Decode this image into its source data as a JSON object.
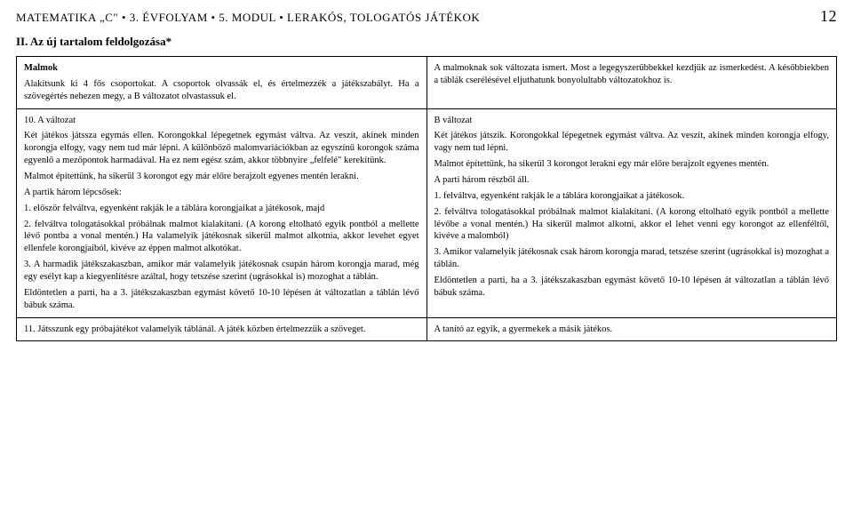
{
  "header": {
    "left": "MATEMATIKA „C\" • 3. ÉVFOLYAM • 5. MODUL • LERAKÓS, TOLOGATÓS JÁTÉKOK",
    "pageNum": "12"
  },
  "sectionTitle": "II. Az új tartalom feldolgozása*",
  "rows": [
    {
      "left": {
        "title": "Malmok",
        "paras": [
          "Alakítsunk ki 4 fős csoportokat. A csoportok olvassák el, és értelmezzék a játékszabályt. Ha a szövegértés nehezen megy, a B változatot olvastassuk el."
        ]
      },
      "right": {
        "paras": [
          "A malmoknak sok változata ismert. Most a legegyszerűbbekkel kezdjük az ismerkedést. A későbbiekben a táblák cserélésével eljuthatunk bonyolultabb változatokhoz is."
        ]
      }
    },
    {
      "left": {
        "title": "10. A változat",
        "paras": [
          "Két játékos játssza egymás ellen. Korongokkal lépegetnek egymást váltva. Az veszít, akinek minden korongja elfogy, vagy nem tud már lépni. A különböző malomvariációkban az egyszínű korongok száma egyenlő a mezőpontok harmadával. Ha ez nem egész szám, akkor többnyire „felfelé\" kerekítünk.",
          "Malmot építettünk, ha sikerül 3 korongot egy már előre berajzolt egyenes mentén lerakni.",
          "A partik három lépcsősek:",
          "1. először felváltva, egyenként rakják le a táblára korongjaikat a játékosok, majd",
          "2. felváltva tologatásokkal próbálnak malmot kialakítani. (A korong eltolható egyik pontból a mellette lévő pontba a vonal mentén.) Ha valamelyik játékosnak sikerül malmot alkotnia, akkor levehet egyet ellenfele korongjaiból, kivéve az éppen malmot alkotókat.",
          "3. A harmadik játékszakaszban, amikor már valamelyik játékosnak csupán három korongja marad, még egy esélyt kap a kiegyenlítésre azáltal, hogy tetszése szerint (ugrásokkal is) mozoghat a táblán.",
          "Eldöntetlen a parti, ha a 3. játékszakaszban egymást követő 10-10 lépésen át változatlan a táblán lévő bábuk száma."
        ]
      },
      "right": {
        "title": "B változat",
        "paras": [
          "Két játékos játszik. Korongokkal lépegetnek egymást váltva. Az veszít, akinek minden korongja elfogy, vagy nem tud lépni.",
          "Malmot építettünk, ha sikerül 3 korongot lerakni egy már előre berajzolt egyenes mentén.",
          "A parti három részből áll.",
          "1. felváltva, egyenként rakják le a táblára korongjaikat a játékosok.",
          "2. felváltva tologatásokkal próbálnak malmot kialakítani. (A korong eltolható egyik pontból a mellette lévőbe a vonal mentén.) Ha sikerül malmot alkotni, akkor el lehet venni egy korongot az ellenféltől, kivéve a malomból)",
          "3. Amikor valamelyik játékosnak csak három korongja marad, tetszése szerint (ugrásokkal is) mozoghat a táblán.",
          "Eldöntetlen a parti, ha a 3. játékszakaszban egymást követő 10-10 lépésen át változatlan a táblán lévő bábuk száma."
        ]
      }
    },
    {
      "left": {
        "paras": [
          "11. Játsszunk egy próbajátékot valamelyik táblánál. A játék közben értelmezzük a szöveget."
        ]
      },
      "right": {
        "paras": [
          "A tanító az egyik, a gyermekek a másik játékos."
        ]
      }
    }
  ]
}
